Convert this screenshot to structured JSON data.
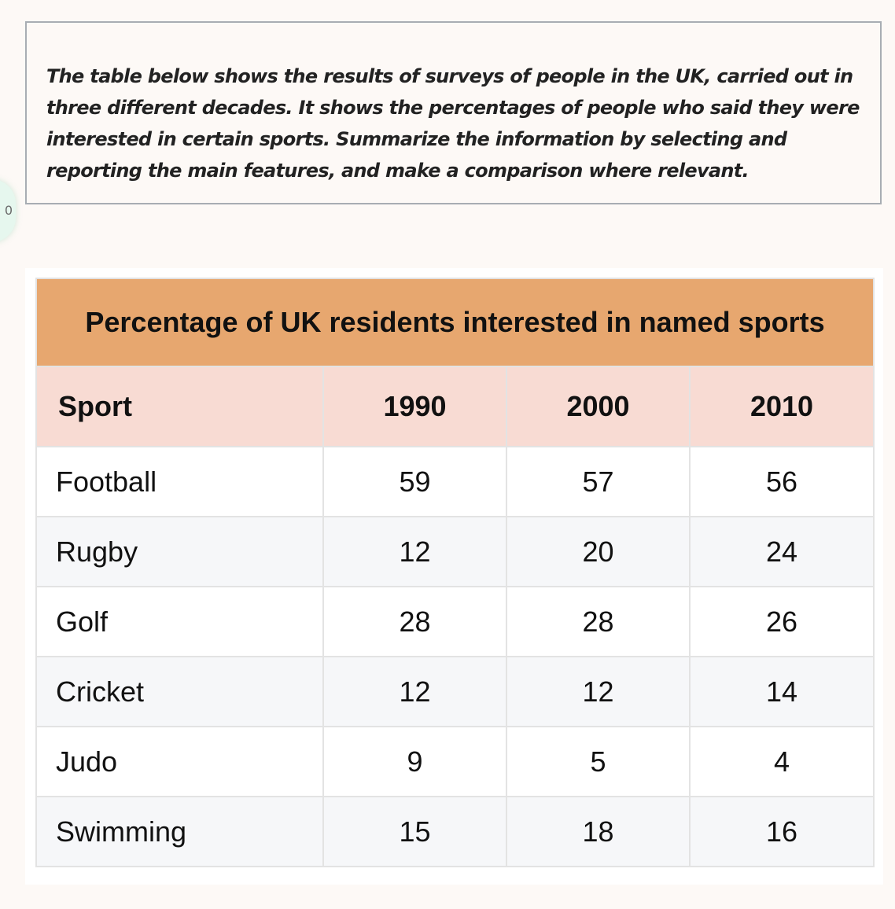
{
  "side_bubble": {
    "text": "0"
  },
  "prompt": {
    "text": "The table below shows the results of surveys of people in the UK, carried out in three different decades. It shows the percentages of people who said they were interested in certain sports. Summarize the information by selecting and reporting the main features, and make a comparison where relevant."
  },
  "table": {
    "title": "Percentage of UK residents interested in named sports",
    "headers": [
      "Sport",
      "1990",
      "2000",
      "2010"
    ],
    "rows": [
      [
        "Football",
        "59",
        "57",
        "56"
      ],
      [
        "Rugby",
        "12",
        "20",
        "24"
      ],
      [
        "Golf",
        "28",
        "28",
        "26"
      ],
      [
        "Cricket",
        "12",
        "12",
        "14"
      ],
      [
        "Judo",
        "9",
        "5",
        "4"
      ],
      [
        "Swimming",
        "15",
        "18",
        "16"
      ]
    ]
  },
  "colors": {
    "title_bg": "#e7a76f",
    "header_bg": "#f8dbd3",
    "stripe_bg": "#f6f7f9",
    "page_bg": "#fdf9f6"
  }
}
